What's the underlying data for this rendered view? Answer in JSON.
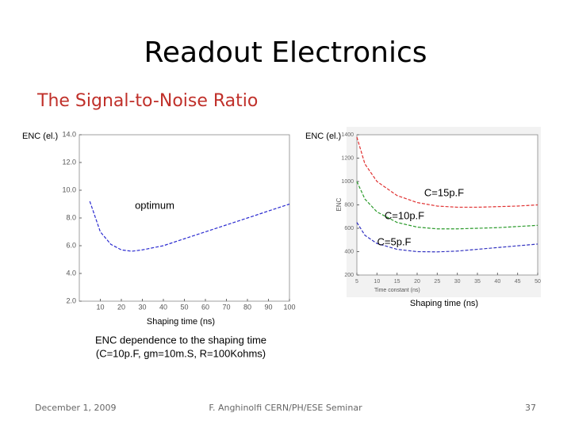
{
  "slide": {
    "title": "Readout Electronics",
    "subtitle": "The Signal-to-Noise Ratio",
    "caption": [
      "ENC dependence to the shaping time",
      "(C=10p.F, gm=10m.S, R=100Kohms)"
    ],
    "footer": {
      "date": "December 1, 2009",
      "author": "F. Anghinolfi CERN/PH/ESE Seminar",
      "page": "37"
    }
  },
  "chart_data": [
    {
      "type": "line",
      "ylabel": "ENC (el.)",
      "xlabel": "Shaping time (ns)",
      "annotation": "optimum",
      "x": [
        5,
        10,
        15,
        20,
        25,
        30,
        40,
        50,
        60,
        70,
        80,
        90,
        100
      ],
      "values": [
        9.2,
        7.0,
        6.1,
        5.7,
        5.6,
        5.7,
        6.0,
        6.5,
        7.0,
        7.5,
        8.0,
        8.5,
        9.0
      ],
      "color": "#2a2ad0",
      "dashed": true,
      "xlim": [
        0,
        100
      ],
      "xticks": [
        10,
        20,
        30,
        40,
        50,
        60,
        70,
        80,
        90,
        100
      ],
      "ylim": [
        2,
        14
      ],
      "yticks": [
        {
          "value": 2,
          "label": "2.0"
        },
        {
          "value": 4,
          "label": "4.0"
        },
        {
          "value": 6,
          "label": "6.0"
        },
        {
          "value": 8,
          "label": "8.0"
        },
        {
          "value": 10,
          "label": "10.0"
        },
        {
          "value": 12,
          "label": "12.0"
        },
        {
          "value": 14,
          "label": "14.0"
        }
      ]
    },
    {
      "type": "line",
      "ylabel": "ENC (el.)",
      "xlabel": "Shaping time (ns)",
      "axis_ylabel": "ENC",
      "axis_xlabel": "Time constant (ns)",
      "x": [
        5,
        7,
        10,
        15,
        20,
        25,
        30,
        35,
        40,
        45,
        50
      ],
      "series": [
        {
          "name": "C=15p.F",
          "color": "#e03030",
          "values": [
            1380,
            1150,
            1000,
            880,
            820,
            790,
            780,
            780,
            785,
            790,
            800
          ]
        },
        {
          "name": "C=10p.F",
          "color": "#2a9a2a",
          "values": [
            1000,
            850,
            740,
            650,
            610,
            595,
            595,
            600,
            605,
            615,
            625
          ]
        },
        {
          "name": "C=5p.F",
          "color": "#3030c0",
          "values": [
            650,
            540,
            470,
            420,
            400,
            398,
            405,
            420,
            435,
            450,
            465
          ]
        }
      ],
      "dashed": true,
      "xlim": [
        5,
        50
      ],
      "xticks": [
        5,
        10,
        15,
        20,
        25,
        30,
        35,
        40,
        45,
        50
      ],
      "ylim": [
        200,
        1400
      ],
      "yticks": [
        200,
        400,
        600,
        800,
        1000,
        1200,
        1400
      ]
    }
  ]
}
